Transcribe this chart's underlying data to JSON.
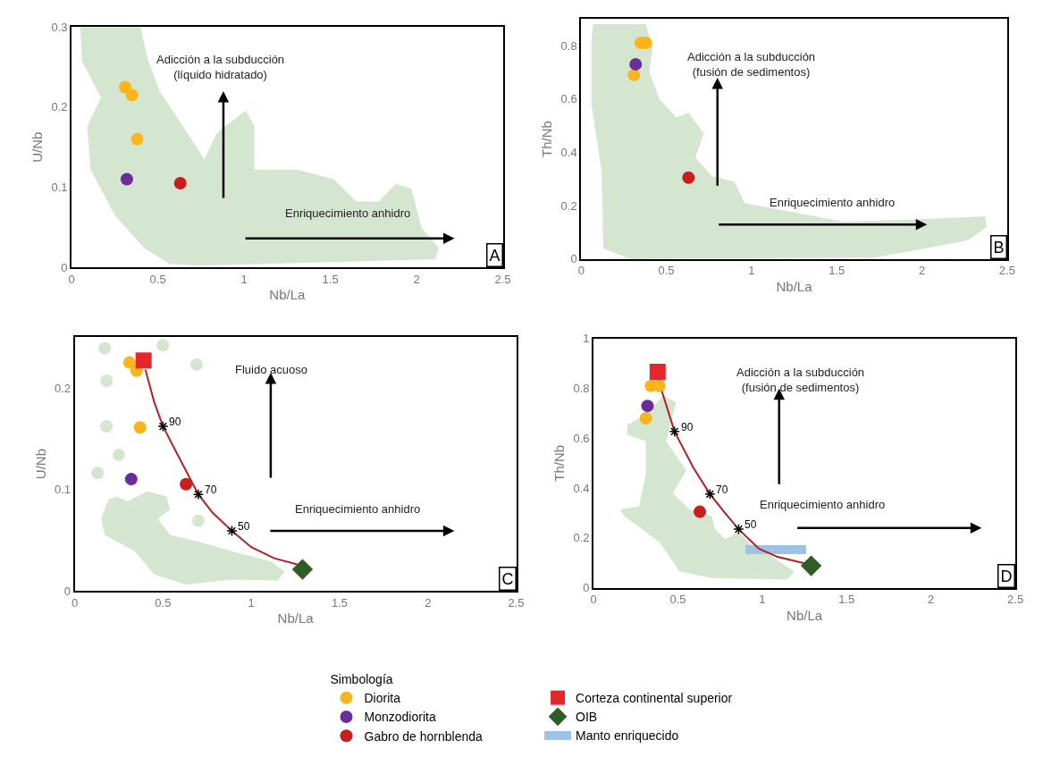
{
  "chart_data": [
    {
      "type": "scatter",
      "xlabel": "Nb/La",
      "ylabel": "U/Nb",
      "xlim": [
        0,
        2.5
      ],
      "ylim": [
        0,
        0.3
      ],
      "xticks": [
        0,
        0.5,
        1,
        1.5,
        2,
        2.5
      ],
      "yticks": [
        0,
        0.1,
        0.2,
        0.3
      ],
      "legend": "bottom",
      "legend_title": "Simbología",
      "annotations": [
        "A",
        "Adicción a la subducción\n(líquido hidratado)",
        "Enriquecimiento anhidro"
      ],
      "series": [
        {
          "type": "area",
          "color": "#d5e6d0",
          "x": [
            0.05,
            0.4,
            0.44,
            0.51,
            0.66,
            0.77,
            0.84,
            1.01,
            1.06,
            1.06,
            1.31,
            1.52,
            1.65,
            1.78,
            1.88,
            1.97,
            2.03,
            2.13,
            2.11,
            0.74,
            0.57,
            0.42,
            0.25,
            0.11,
            0.09,
            0.17,
            0.06
          ],
          "values": [
            0.3,
            0.3,
            0.261,
            0.22,
            0.171,
            0.135,
            0.167,
            0.196,
            0.176,
            0.122,
            0.122,
            0.11,
            0.082,
            0.082,
            0.104,
            0.098,
            0.049,
            0.024,
            0.01,
            0.002,
            0.004,
            0.024,
            0.065,
            0.122,
            0.176,
            0.212,
            0.257
          ]
        },
        {
          "name": "Diorita",
          "marker": "circle",
          "color": "#f8b51c",
          "x": [
            0.31,
            0.35,
            0.38
          ],
          "values": [
            0.225,
            0.215,
            0.16
          ]
        },
        {
          "name": "Monzodiorita",
          "marker": "circle",
          "color": "#6b2d9a",
          "x": [
            0.32
          ],
          "values": [
            0.11
          ]
        },
        {
          "name": "Gabro de hornblenda",
          "marker": "circle",
          "color": "#c81e1e",
          "x": [
            0.63
          ],
          "values": [
            0.105
          ]
        }
      ]
    },
    {
      "type": "scatter",
      "xlabel": "Nb/La",
      "ylabel": "Th/Nb",
      "xlim": [
        0,
        2.5
      ],
      "ylim": [
        0,
        0.9
      ],
      "xticks": [
        0,
        0.5,
        1,
        1.5,
        2,
        2.5
      ],
      "yticks": [
        0,
        0.2,
        0.4,
        0.6,
        0.8
      ],
      "legend": "bottom",
      "annotations": [
        "B",
        "Adicción a la subducción\n(fusión de sedimentos)",
        "Enriquecimiento anhidro"
      ],
      "series": [
        {
          "type": "area",
          "color": "#d5e6d0",
          "x": [
            0.07,
            0.38,
            0.42,
            0.4,
            0.46,
            0.56,
            0.63,
            0.72,
            0.67,
            0.77,
            0.9,
            0.96,
            1.54,
            2.02,
            2.37,
            2.38,
            2.27,
            1.73,
            0.29,
            0.13,
            0.12,
            0.06,
            0.06
          ],
          "values": [
            0.88,
            0.88,
            0.79,
            0.7,
            0.6,
            0.53,
            0.55,
            0.47,
            0.38,
            0.31,
            0.29,
            0.21,
            0.14,
            0.15,
            0.16,
            0.12,
            0.07,
            0.006,
            0.0,
            0.04,
            0.33,
            0.58,
            0.82
          ]
        },
        {
          "name": "Diorita",
          "marker": "circle",
          "color": "#f8b51c",
          "x": [
            0.35,
            0.38,
            0.31
          ],
          "values": [
            0.81,
            0.81,
            0.69
          ]
        },
        {
          "name": "Monzodiorita",
          "marker": "circle",
          "color": "#6b2d9a",
          "x": [
            0.32
          ],
          "values": [
            0.73
          ]
        },
        {
          "name": "Gabro de hornblenda",
          "marker": "circle",
          "color": "#c81e1e",
          "x": [
            0.63
          ],
          "values": [
            0.305
          ]
        }
      ]
    },
    {
      "type": "scatter",
      "xlabel": "Nb/La",
      "ylabel": "U/Nb",
      "xlim": [
        0,
        2.5
      ],
      "ylim": [
        0,
        0.25
      ],
      "xticks": [
        0,
        0.5,
        1,
        1.5,
        2,
        2.5
      ],
      "yticks": [
        0,
        0.1,
        0.2
      ],
      "legend": "bottom",
      "annotations": [
        "C",
        "Fluido acuoso",
        "Enriquecimiento anhidro",
        {
          "text": "90",
          "x": 0.5,
          "y": 0.162
        },
        {
          "text": "70",
          "x": 0.7,
          "y": 0.095
        },
        {
          "text": "50",
          "x": 0.89,
          "y": 0.059
        }
      ],
      "series": [
        {
          "type": "area",
          "color": "#d5e6d0",
          "x": [
            0.19,
            0.24,
            0.3,
            0.41,
            0.52,
            0.54,
            0.47,
            0.54,
            0.71,
            0.89,
            1.11,
            1.19,
            1.15,
            0.89,
            0.63,
            0.45,
            0.34,
            0.17,
            0.15
          ],
          "values": [
            0.09,
            0.093,
            0.088,
            0.098,
            0.093,
            0.08,
            0.071,
            0.055,
            0.048,
            0.039,
            0.029,
            0.019,
            0.01,
            0.011,
            0.006,
            0.016,
            0.039,
            0.055,
            0.071
          ]
        },
        {
          "marker": "circle",
          "color": "#d5e6d0",
          "x": [
            0.17,
            0.5,
            0.69,
            0.18,
            0.18,
            0.25,
            0.13,
            0.7
          ],
          "values": [
            0.239,
            0.242,
            0.223,
            0.207,
            0.162,
            0.134,
            0.116,
            0.069
          ]
        },
        {
          "type": "line",
          "color": "#b22222",
          "x": [
            0.4,
            0.45,
            0.5,
            0.58,
            0.7,
            0.78,
            0.89,
            1.0,
            1.13,
            1.26
          ],
          "values": [
            0.218,
            0.186,
            0.162,
            0.135,
            0.095,
            0.077,
            0.059,
            0.043,
            0.032,
            0.026
          ]
        },
        {
          "marker": "cross",
          "color": "#000000",
          "x": [
            0.5,
            0.7,
            0.89
          ],
          "values": [
            0.162,
            0.095,
            0.059
          ]
        },
        {
          "name": "Diorita",
          "marker": "circle",
          "color": "#f8b51c",
          "x": [
            0.31,
            0.35,
            0.37
          ],
          "values": [
            0.225,
            0.217,
            0.161
          ]
        },
        {
          "name": "Monzodiorita",
          "marker": "circle",
          "color": "#6b2d9a",
          "x": [
            0.32
          ],
          "values": [
            0.11
          ]
        },
        {
          "name": "Gabro de hornblenda",
          "marker": "circle",
          "color": "#c81e1e",
          "x": [
            0.63
          ],
          "values": [
            0.105
          ]
        },
        {
          "name": "Corteza continental superior",
          "marker": "square",
          "color": "#e5262a",
          "x": [
            0.39
          ],
          "values": [
            0.227
          ]
        },
        {
          "name": "OIB",
          "marker": "diamond",
          "color": "#2e5e26",
          "x": [
            1.29
          ],
          "values": [
            0.021
          ]
        }
      ]
    },
    {
      "type": "scatter",
      "xlabel": "Nb/La",
      "ylabel": "Th/Nb",
      "xlim": [
        0,
        2.5
      ],
      "ylim": [
        0,
        1
      ],
      "xticks": [
        0,
        0.5,
        1,
        1.5,
        2,
        2.5
      ],
      "yticks": [
        0,
        0.2,
        0.4,
        0.6,
        0.8,
        1
      ],
      "legend": "bottom",
      "annotations": [
        "D",
        "Adicción a la subducción\n(fusión de sedimentos)",
        "Enriquecimiento anhidro",
        {
          "text": "90",
          "x": 0.48,
          "y": 0.627
        },
        {
          "text": "70",
          "x": 0.69,
          "y": 0.376
        },
        {
          "text": "50",
          "x": 0.86,
          "y": 0.235
        }
      ],
      "series": [
        {
          "type": "area",
          "color": "#d5e6d0",
          "x": [
            0.2,
            0.31,
            0.41,
            0.49,
            0.47,
            0.43,
            0.55,
            0.47,
            0.57,
            0.7,
            0.72,
            0.78,
            0.86,
            0.94,
            1.09,
            1.19,
            1.15,
            0.7,
            0.51,
            0.39,
            0.18,
            0.16,
            0.27,
            0.31,
            0.31,
            0.2
          ],
          "values": [
            0.654,
            0.693,
            0.771,
            0.745,
            0.693,
            0.588,
            0.471,
            0.379,
            0.314,
            0.288,
            0.235,
            0.196,
            0.222,
            0.17,
            0.111,
            0.065,
            0.033,
            0.039,
            0.065,
            0.183,
            0.288,
            0.314,
            0.327,
            0.458,
            0.588,
            0.614
          ]
        },
        {
          "name": "Manto enriquecido",
          "type": "line",
          "color": "#9dc3e6",
          "x": [
            0.9,
            1.26
          ],
          "values": [
            0.153,
            0.153
          ]
        },
        {
          "type": "line",
          "color": "#b22222",
          "x": [
            0.4,
            0.48,
            0.59,
            0.69,
            0.78,
            0.86,
            0.98,
            1.09,
            1.25
          ],
          "values": [
            0.8,
            0.627,
            0.484,
            0.376,
            0.3,
            0.235,
            0.157,
            0.124,
            0.098
          ]
        },
        {
          "marker": "cross",
          "color": "#000000",
          "x": [
            0.48,
            0.69,
            0.86
          ],
          "values": [
            0.627,
            0.376,
            0.235
          ]
        },
        {
          "name": "Diorita",
          "marker": "circle",
          "color": "#f8b51c",
          "x": [
            0.34,
            0.39,
            0.31
          ],
          "values": [
            0.81,
            0.81,
            0.68
          ]
        },
        {
          "name": "Monzodiorita",
          "marker": "circle",
          "color": "#6b2d9a",
          "x": [
            0.32
          ],
          "values": [
            0.73
          ]
        },
        {
          "name": "Gabro de hornblenda",
          "marker": "circle",
          "color": "#c81e1e",
          "x": [
            0.63
          ],
          "values": [
            0.305
          ]
        },
        {
          "name": "Corteza continental superior",
          "marker": "square",
          "color": "#e5262a",
          "x": [
            0.38
          ],
          "values": [
            0.867
          ]
        },
        {
          "name": "OIB",
          "marker": "diamond",
          "color": "#2e5e26",
          "x": [
            1.29
          ],
          "values": [
            0.088
          ]
        }
      ]
    }
  ]
}
